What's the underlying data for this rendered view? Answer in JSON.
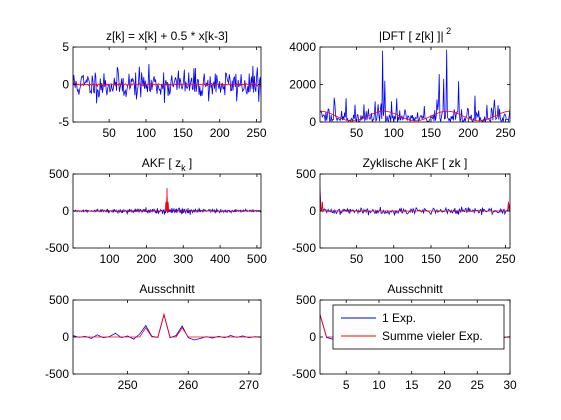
{
  "colors": {
    "exp1": "#0000ff",
    "many": "#ff0000",
    "axes": "#000000",
    "background": "#ffffff"
  },
  "legend": {
    "entries": [
      "1 Exp.",
      "Summe vieler Exp."
    ],
    "location": "in last panel, top-right"
  },
  "chart_data": [
    {
      "id": "p1",
      "type": "line",
      "title": "z[k] = x[k] + 0.5 * x[k-3]",
      "xlim": [
        1,
        256
      ],
      "ylim": [
        -5,
        5
      ],
      "xticks": [
        50,
        100,
        150,
        200,
        250
      ],
      "yticks": [
        -5,
        0,
        5
      ],
      "series": [
        {
          "color": "blue",
          "gen": "noise",
          "n": 256,
          "amp": 1.0,
          "seed": 11,
          "x0": 1
        },
        {
          "color": "red",
          "gen": "noise",
          "n": 256,
          "amp": 0.08,
          "seed": 12,
          "x0": 1
        }
      ]
    },
    {
      "id": "p2",
      "type": "line",
      "title": "|DFT [ z[k] ]|",
      "title_superscript": "2",
      "xlim": [
        1,
        256
      ],
      "ylim": [
        0,
        4000
      ],
      "xticks": [
        50,
        100,
        150,
        200,
        250
      ],
      "yticks": [
        0,
        2000,
        4000
      ],
      "series": [
        {
          "color": "blue",
          "gen": "spectrum",
          "n": 256,
          "seed": 21,
          "peaks": [
            [
              85,
              3800
            ],
            [
              171,
              3850
            ],
            [
              88,
              2200
            ],
            [
              167,
              2300
            ],
            [
              97,
              1100
            ],
            [
              158,
              1200
            ],
            [
              20,
              1300
            ],
            [
              235,
              1200
            ],
            [
              240,
              900
            ]
          ]
        },
        {
          "color": "red",
          "gen": "smoothspec",
          "n": 256
        }
      ]
    },
    {
      "id": "p3",
      "type": "line",
      "title": "AKF [ z",
      "title_subscript": "k",
      "title_suffix": " ]",
      "xlim": [
        1,
        511
      ],
      "ylim": [
        -500,
        500
      ],
      "xticks": [
        100,
        200,
        300,
        400,
        500
      ],
      "yticks": [
        -500,
        0,
        500
      ],
      "series": [
        {
          "color": "blue",
          "gen": "akf",
          "n": 511,
          "center": 256,
          "seed": 31,
          "amp": 22
        },
        {
          "color": "red",
          "gen": "akfred",
          "n": 511,
          "center": 256
        }
      ]
    },
    {
      "id": "p4",
      "type": "line",
      "title": "Zyklische AKF [ zk ]",
      "xlim": [
        1,
        256
      ],
      "ylim": [
        -500,
        500
      ],
      "xticks": [
        50,
        100,
        150,
        200,
        250
      ],
      "yticks": [
        -500,
        0,
        500
      ],
      "series": [
        {
          "color": "blue",
          "gen": "cakf",
          "n": 256,
          "seed": 41,
          "amp": 22
        },
        {
          "color": "red",
          "gen": "cakfred",
          "n": 256
        }
      ]
    },
    {
      "id": "p5",
      "type": "line",
      "title": "Ausschnitt",
      "xlim": [
        241,
        272
      ],
      "ylim": [
        -500,
        500
      ],
      "xticks": [
        250,
        260,
        270
      ],
      "yticks": [
        -500,
        0,
        500
      ],
      "series": [
        {
          "color": "blue",
          "x": [
            241,
            242,
            243,
            244,
            245,
            246,
            247,
            248,
            249,
            250,
            251,
            252,
            253,
            254,
            255,
            256,
            257,
            258,
            259,
            260,
            261,
            262,
            263,
            264,
            265,
            266,
            267,
            268,
            269,
            270,
            271,
            272
          ],
          "y": [
            20,
            -5,
            10,
            -20,
            30,
            -10,
            5,
            50,
            -10,
            15,
            -30,
            40,
            155,
            10,
            -5,
            300,
            -10,
            20,
            150,
            -10,
            -40,
            -20,
            5,
            -15,
            10,
            -10,
            20,
            -5,
            15,
            -10,
            5,
            0
          ]
        },
        {
          "color": "red",
          "x": [
            241,
            242,
            243,
            244,
            245,
            246,
            247,
            248,
            249,
            250,
            251,
            252,
            253,
            254,
            255,
            256,
            257,
            258,
            259,
            260,
            261,
            262,
            263,
            264,
            265,
            266,
            267,
            268,
            269,
            270,
            271,
            272
          ],
          "y": [
            0,
            0,
            0,
            0,
            0,
            0,
            0,
            0,
            0,
            0,
            0,
            0,
            125,
            0,
            0,
            310,
            0,
            0,
            125,
            0,
            0,
            0,
            0,
            0,
            0,
            0,
            0,
            0,
            0,
            0,
            0,
            0
          ]
        }
      ]
    },
    {
      "id": "p6",
      "type": "line",
      "title": "Ausschnitt",
      "xlim": [
        1,
        30
      ],
      "ylim": [
        -500,
        500
      ],
      "xticks": [
        5,
        10,
        15,
        20,
        25,
        30
      ],
      "yticks": [
        -500,
        0,
        500
      ],
      "legend": true,
      "series": [
        {
          "color": "blue",
          "name": "1 Exp.",
          "x": [
            1,
            2,
            3,
            4,
            5,
            6,
            7,
            8,
            9,
            10,
            11,
            12,
            13,
            14,
            15,
            16,
            17,
            18,
            19,
            20,
            21,
            22,
            23,
            24,
            25,
            26,
            27,
            28,
            29,
            30
          ],
          "y": [
            300,
            -5,
            -30,
            120,
            10,
            -20,
            15,
            -10,
            5,
            30,
            -15,
            10,
            -25,
            5,
            20,
            -10,
            -20,
            10,
            25,
            -5,
            15,
            -30,
            10,
            -5,
            20,
            -15,
            5,
            10,
            -10,
            5
          ]
        },
        {
          "color": "red",
          "name": "Summe vieler Exp.",
          "x": [
            1,
            2,
            3,
            4,
            5,
            6,
            7,
            8,
            9,
            10,
            11,
            12,
            13,
            14,
            15,
            16,
            17,
            18,
            19,
            20,
            21,
            22,
            23,
            24,
            25,
            26,
            27,
            28,
            29,
            30
          ],
          "y": [
            310,
            0,
            0,
            125,
            0,
            0,
            0,
            0,
            0,
            0,
            0,
            0,
            0,
            0,
            0,
            0,
            0,
            0,
            0,
            0,
            0,
            0,
            0,
            0,
            0,
            0,
            0,
            0,
            0,
            0
          ]
        }
      ]
    }
  ]
}
